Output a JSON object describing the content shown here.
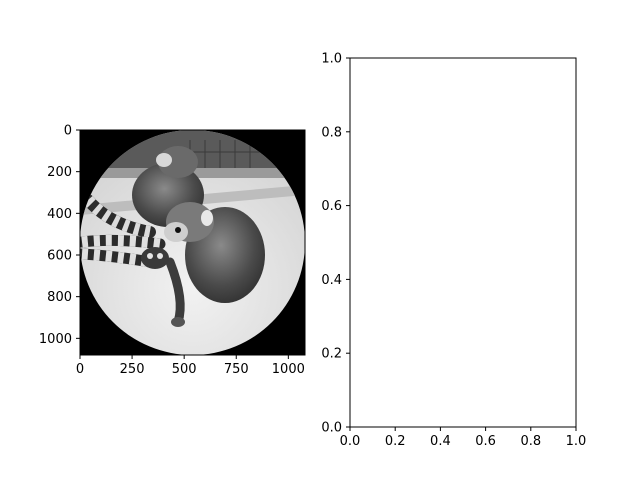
{
  "chart_data": [
    {
      "type": "image",
      "content": "grayscale photo of two ring-tailed lemurs, masked to a circle on a black background",
      "xlim": [
        0,
        1080
      ],
      "ylim": [
        1080,
        0
      ],
      "y_inverted": true,
      "xticks": [
        0,
        250,
        500,
        750,
        1000
      ],
      "yticks": [
        0,
        200,
        400,
        600,
        800,
        1000
      ],
      "xtick_labels": [
        "0",
        "250",
        "500",
        "750",
        "1000"
      ],
      "ytick_labels": [
        "0",
        "200",
        "400",
        "600",
        "800",
        "1000"
      ],
      "title": "",
      "xlabel": "",
      "ylabel": "",
      "colors": {
        "mask": "#000000",
        "background": "#e4e4e4"
      }
    },
    {
      "type": "empty",
      "xlim": [
        0,
        1
      ],
      "ylim": [
        0,
        1
      ],
      "xticks": [
        0.0,
        0.2,
        0.4,
        0.6,
        0.8,
        1.0
      ],
      "yticks": [
        0.0,
        0.2,
        0.4,
        0.6,
        0.8,
        1.0
      ],
      "xtick_labels": [
        "0.0",
        "0.2",
        "0.4",
        "0.6",
        "0.8",
        "1.0"
      ],
      "ytick_labels": [
        "0.0",
        "0.2",
        "0.4",
        "0.6",
        "0.8",
        "1.0"
      ],
      "title": "",
      "xlabel": "",
      "ylabel": "",
      "grid": false
    }
  ]
}
